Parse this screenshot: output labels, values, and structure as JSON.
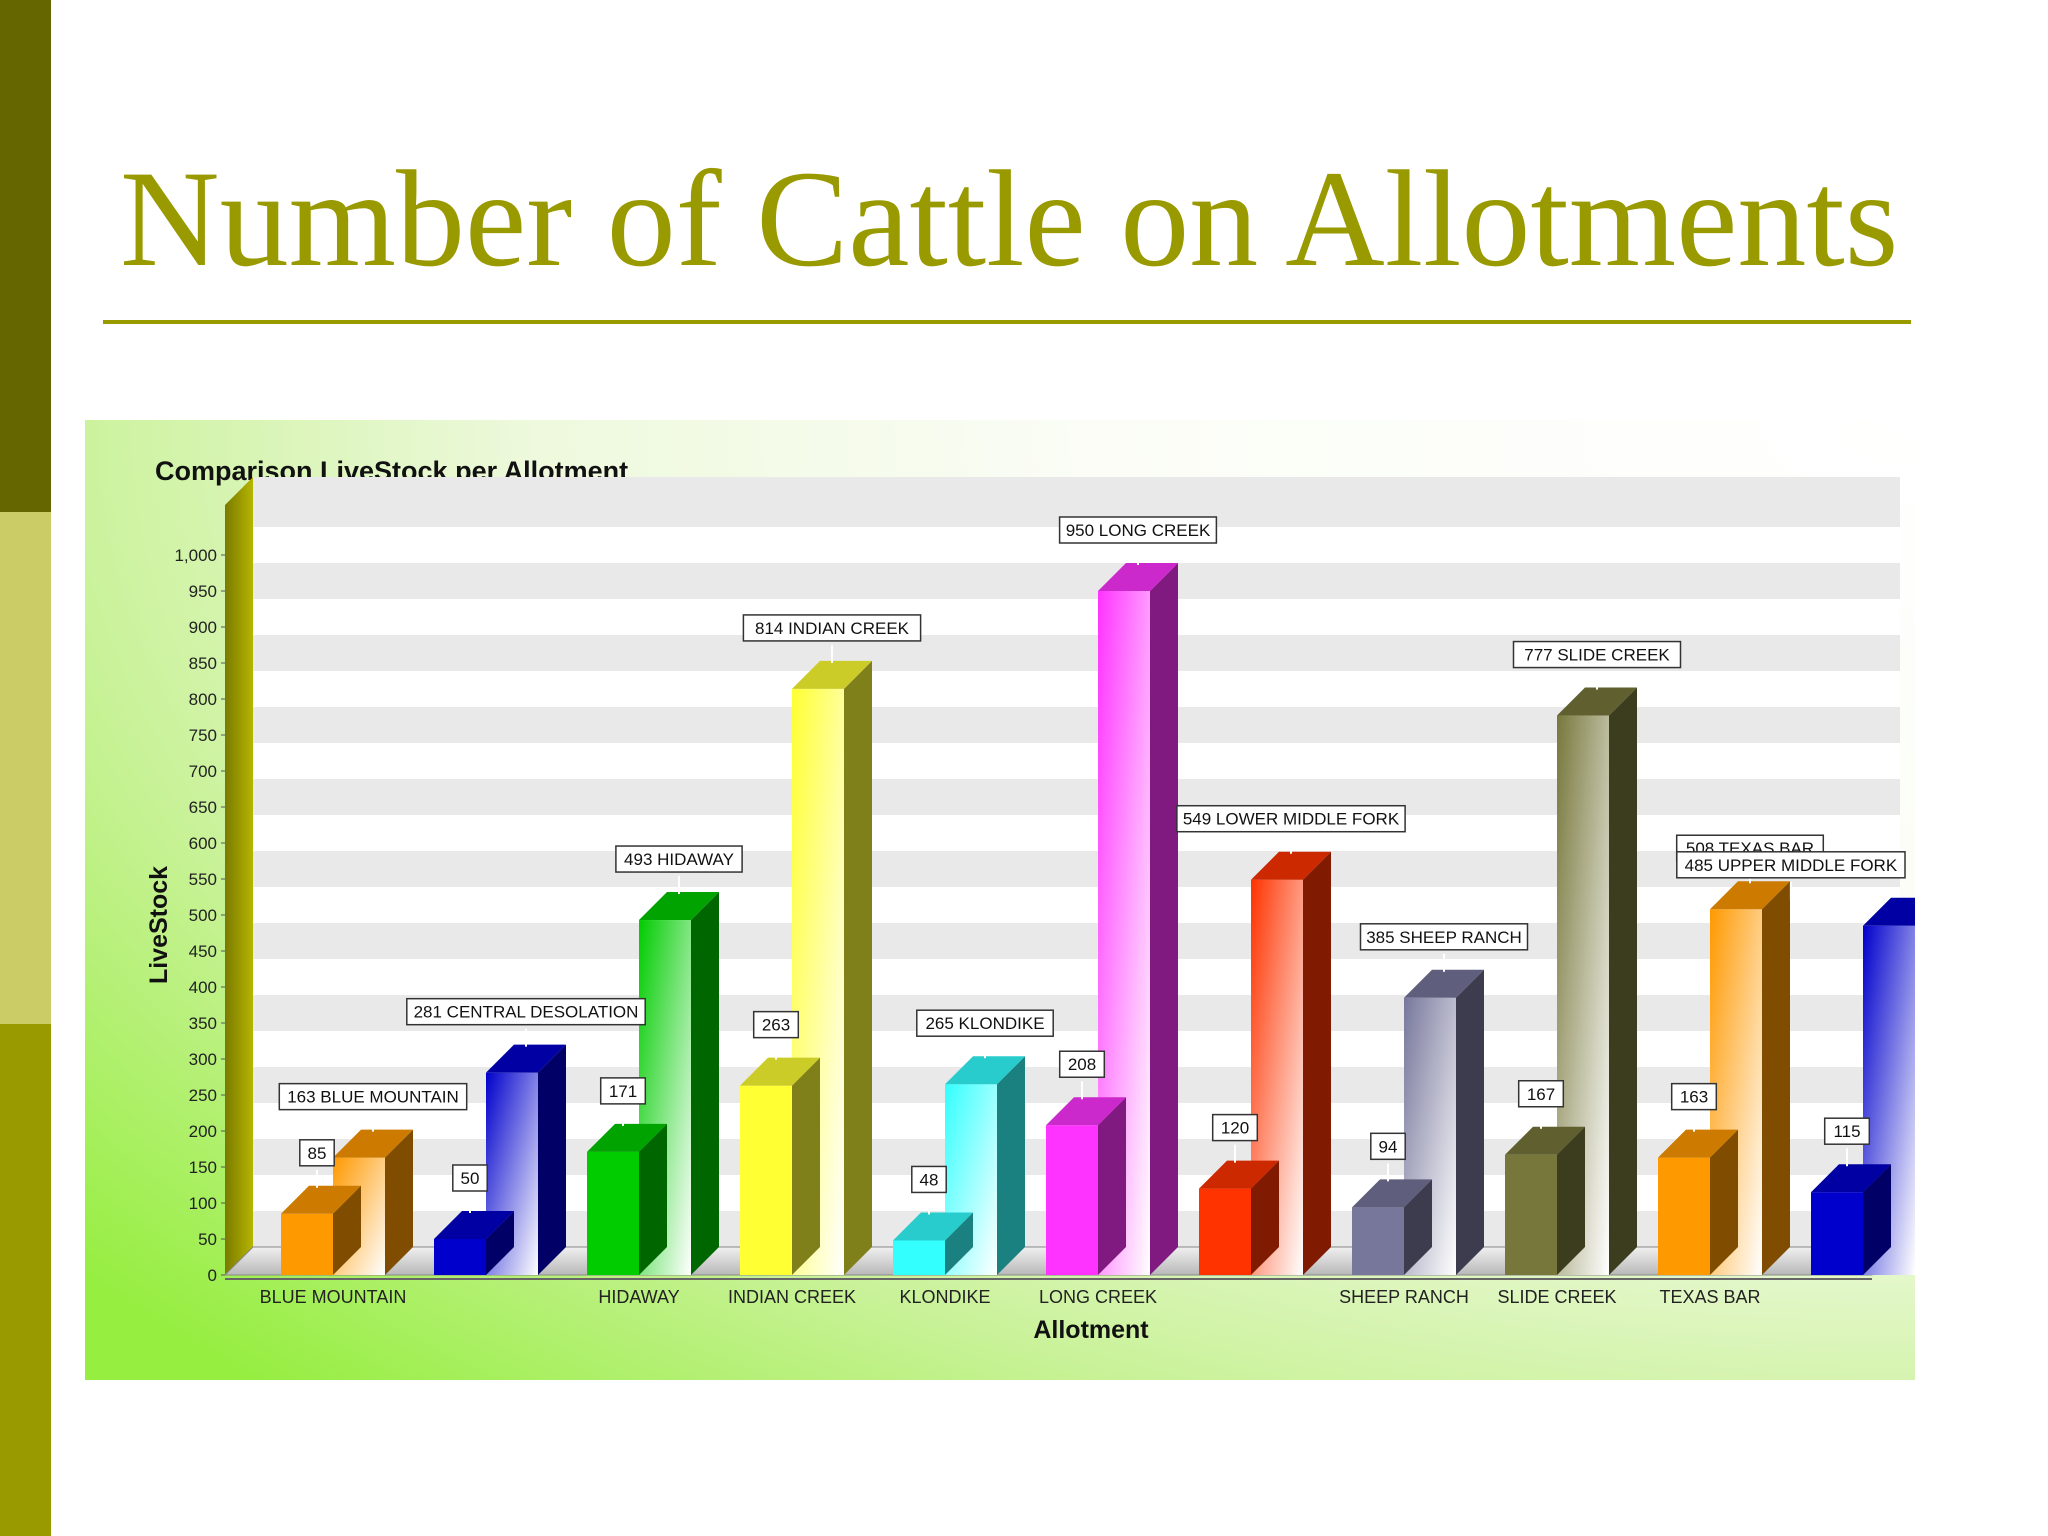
{
  "slide": {
    "title": "Number of Cattle on Allotments",
    "accent_color": "#999900",
    "sidebar_colors": [
      "#666600",
      "#cccc66",
      "#999900"
    ]
  },
  "chart_data": {
    "type": "bar",
    "title": "Comparison LiveStock per Allotment",
    "xlabel": "Allotment",
    "ylabel": "LiveStock",
    "ylim": [
      0,
      1000
    ],
    "yticks": [
      0,
      50,
      100,
      150,
      200,
      250,
      300,
      350,
      400,
      450,
      500,
      550,
      600,
      650,
      700,
      750,
      800,
      850,
      900,
      950,
      1000
    ],
    "ytick_labels": [
      "0",
      "50",
      "100",
      "150",
      "200",
      "250",
      "300",
      "350",
      "400",
      "450",
      "500",
      "550",
      "600",
      "650",
      "700",
      "750",
      "800",
      "850",
      "900",
      "950",
      "1,000"
    ],
    "grid": true,
    "legend": "none",
    "three_d": true,
    "categories": [
      "BLUE MOUNTAIN",
      "CENTRAL DESOLATION",
      "HIDAWAY",
      "INDIAN CREEK",
      "KLONDIKE",
      "LONG CREEK",
      "LOWER MIDDLE FORK",
      "SHEEP RANCH",
      "SLIDE CREEK",
      "TEXAS BAR",
      "UPPER MIDDLE FORK"
    ],
    "x_tick_labels": [
      "BLUE MOUNTAIN",
      "",
      "HIDAWAY",
      "INDIAN CREEK",
      "KLONDIKE",
      "LONG CREEK",
      "",
      "SHEEP RANCH",
      "SLIDE CREEK",
      "TEXAS BAR",
      ""
    ],
    "series": [
      {
        "values": [
          85,
          50,
          171,
          263,
          48,
          208,
          120,
          94,
          167,
          163,
          115
        ],
        "data_labels": [
          "85",
          "50",
          "171",
          "263",
          "48",
          "208",
          "120",
          "94",
          "167",
          "163",
          "115"
        ]
      },
      {
        "values": [
          163,
          281,
          493,
          814,
          265,
          950,
          549,
          385,
          777,
          508,
          485
        ],
        "data_labels": [
          "163 BLUE MOUNTAIN",
          "281 CENTRAL DESOLATION",
          "493 HIDAWAY",
          "814 INDIAN CREEK",
          "265 KLONDIKE",
          "950 LONG CREEK",
          "549 LOWER MIDDLE FORK",
          "385 SHEEP RANCH",
          "777 SLIDE CREEK",
          "508 TEXAS BAR",
          "485 UPPER MIDDLE FORK"
        ]
      }
    ],
    "colors": [
      "#ff9900",
      "#0000cc",
      "#00cc00",
      "#ffff33",
      "#33ffff",
      "#ff33ff",
      "#ff3300",
      "#77779c",
      "#77773c",
      "#ff9900",
      "#0000cc"
    ]
  }
}
